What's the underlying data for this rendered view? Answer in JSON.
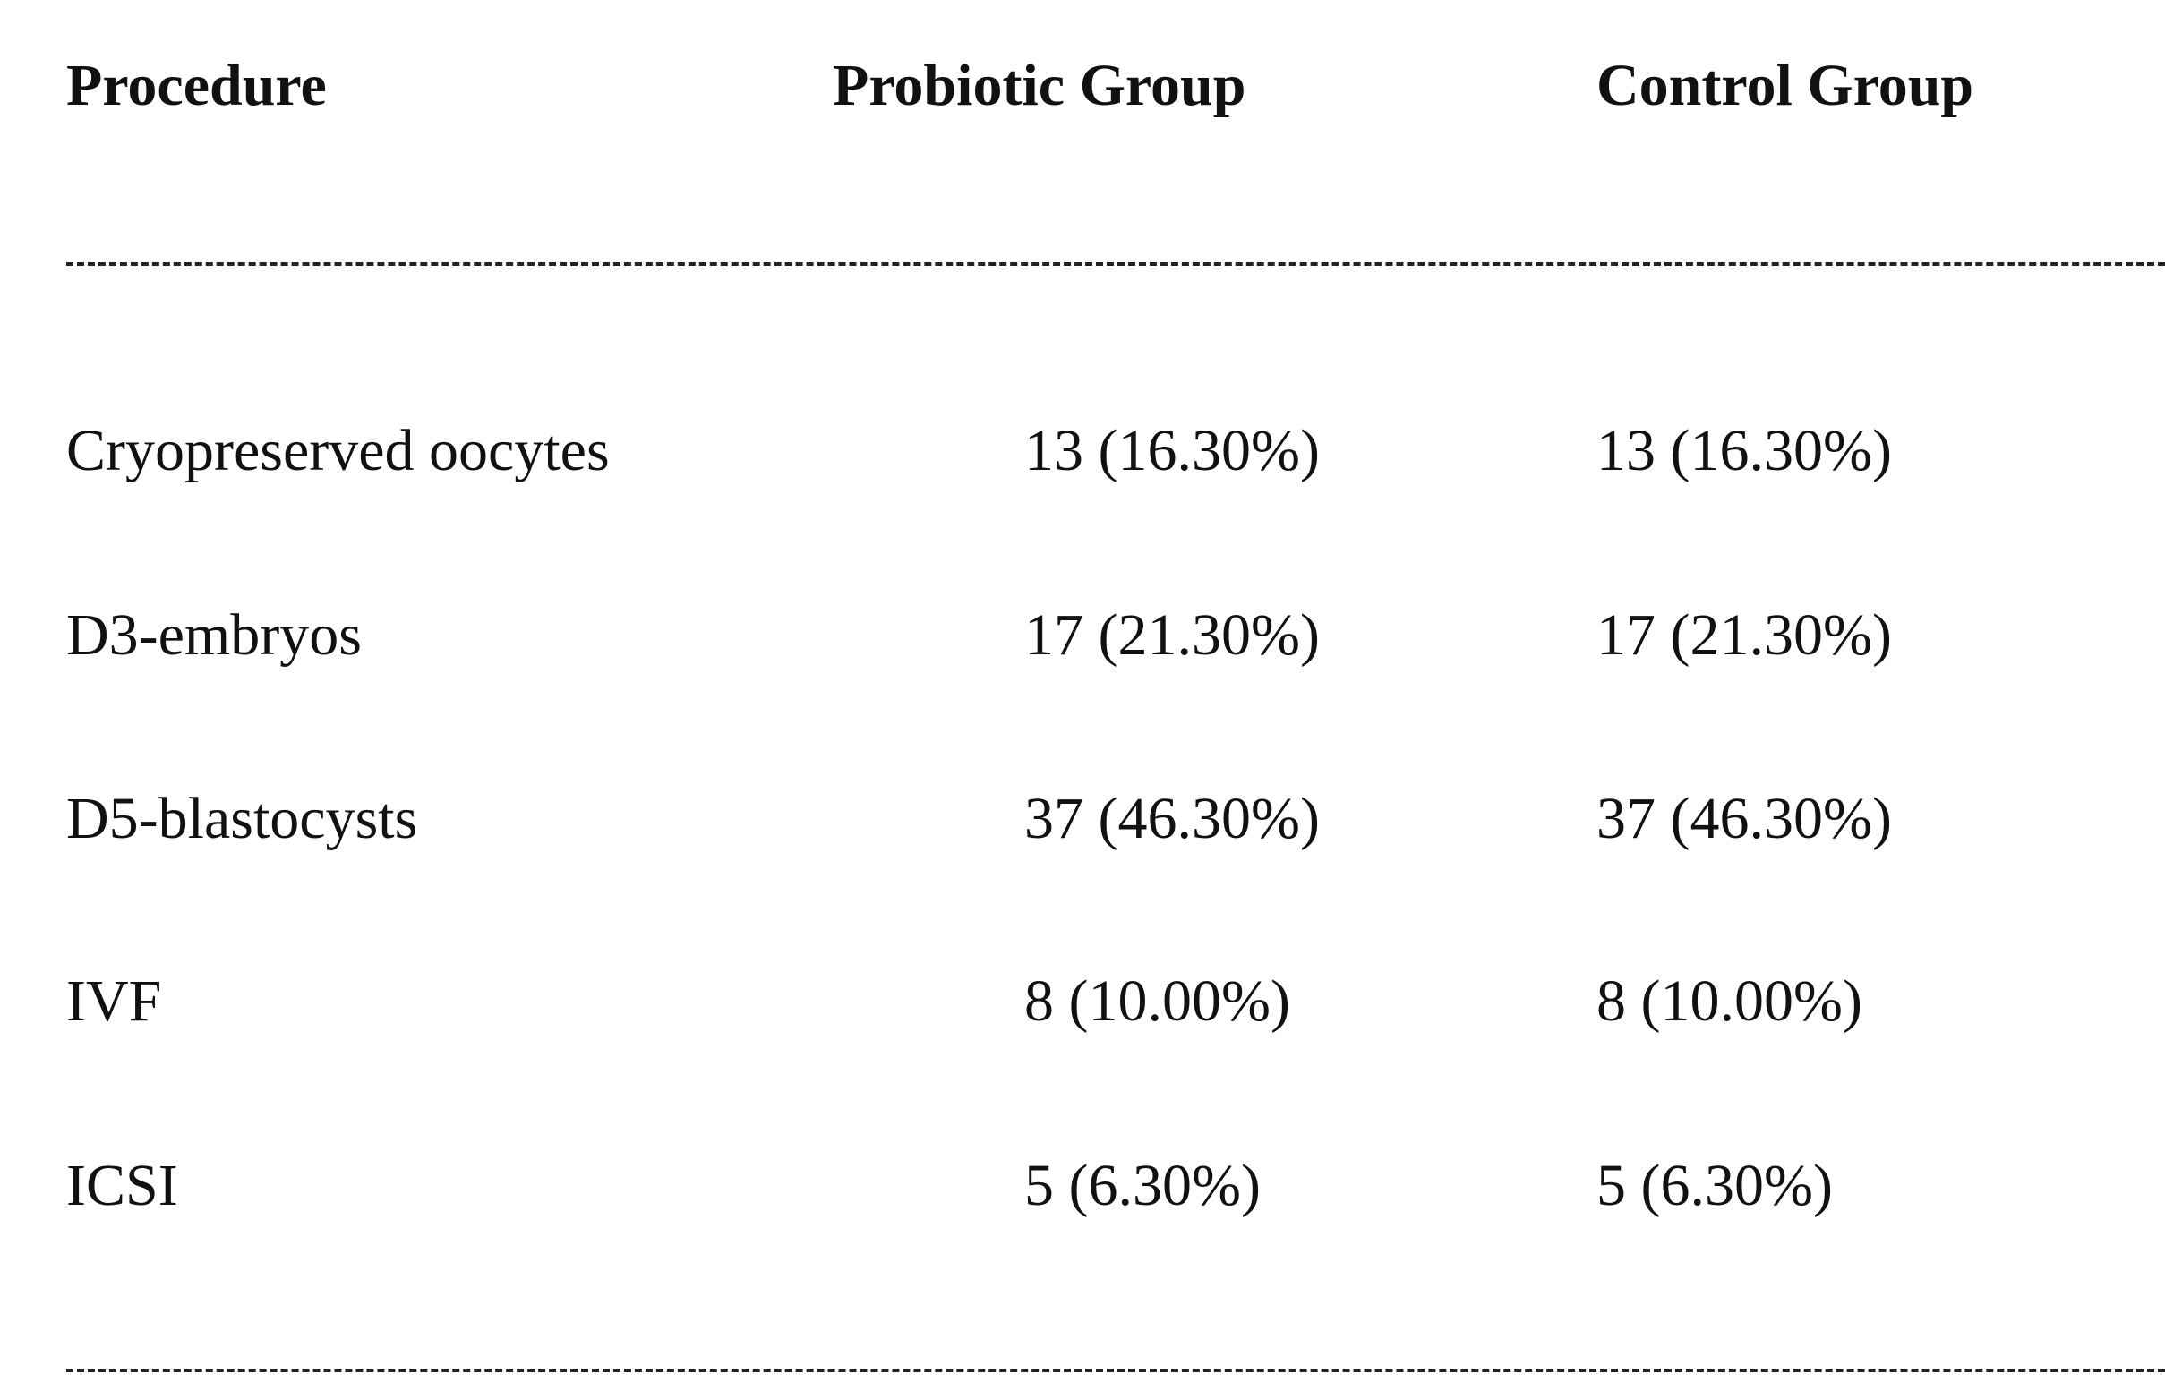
{
  "table": {
    "header": [
      "Procedure",
      "Probiotic Group",
      "Control Group"
    ],
    "rows": [
      [
        "Cryopreserved oocytes",
        "13 (16.30%)",
        "13 (16.30%)"
      ],
      [
        "D3-embryos",
        "17 (21.30%)",
        "17 (21.30%)"
      ],
      [
        "D5-blastocysts",
        "37 (46.30%)",
        "37 (46.30%)"
      ],
      [
        "IVF",
        "8 (10.00%)",
        "8 (10.00%)"
      ],
      [
        "ICSI",
        "5 (6.30%)",
        "5 (6.30%)"
      ]
    ]
  }
}
